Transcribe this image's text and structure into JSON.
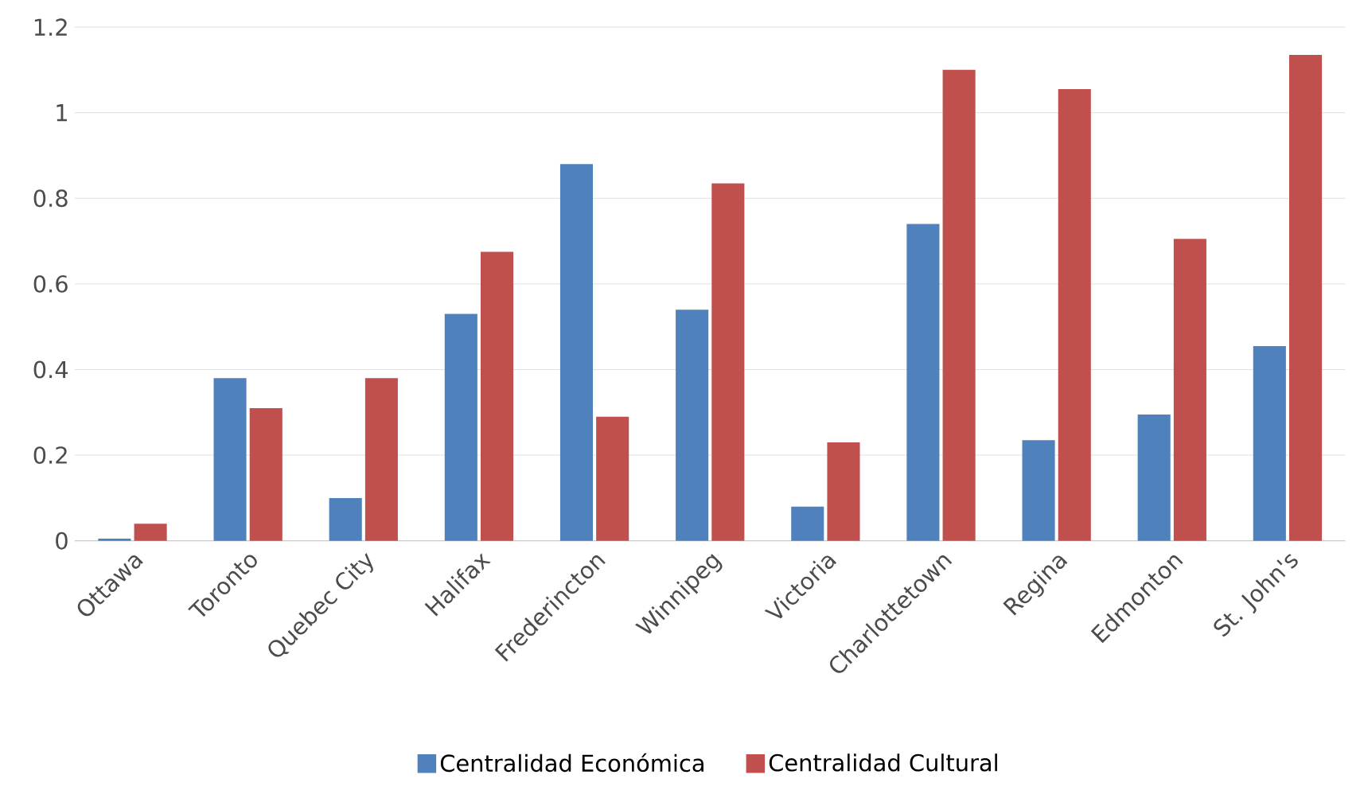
{
  "chart_data": {
    "type": "bar",
    "categories": [
      "Ottawa",
      "Toronto",
      "Quebec City",
      "Halifax",
      "Frederincton",
      "Winnipeg",
      "Victoria",
      "Charlottetown",
      "Regina",
      "Edmonton",
      "St. John's"
    ],
    "series": [
      {
        "name": "Centralidad Económica",
        "color": "#4f81bd",
        "values": [
          0.005,
          0.38,
          0.1,
          0.53,
          0.88,
          0.54,
          0.08,
          0.74,
          0.235,
          0.295,
          0.455
        ]
      },
      {
        "name": "Centralidad Cultural",
        "color": "#c0504d",
        "values": [
          0.04,
          0.31,
          0.38,
          0.675,
          0.29,
          0.835,
          0.23,
          1.1,
          1.055,
          0.705,
          1.135
        ]
      }
    ],
    "ylim": [
      0,
      1.2
    ],
    "yticks": [
      0,
      0.2,
      0.4,
      0.6,
      0.8,
      1,
      1.2
    ],
    "grid": "y",
    "legend": "bottom"
  }
}
